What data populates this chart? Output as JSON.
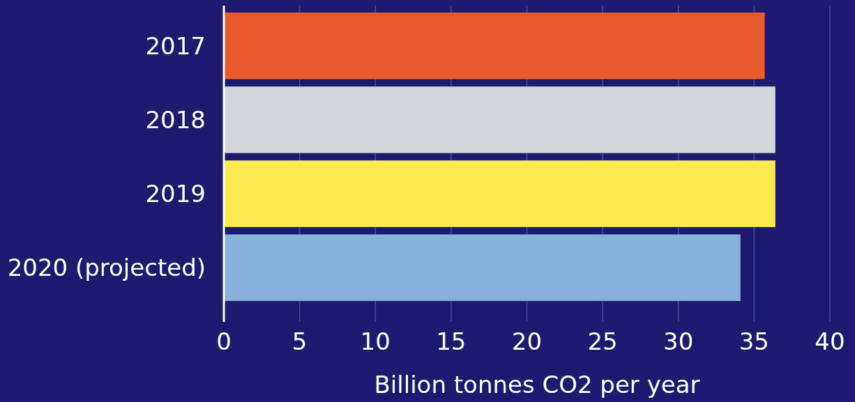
{
  "chart_data": {
    "type": "bar",
    "orientation": "horizontal",
    "categories": [
      "2017",
      "2018",
      "2019",
      "2020 (projected)"
    ],
    "values": [
      35.7,
      36.4,
      36.4,
      34.1
    ],
    "colors": [
      "#e95a2e",
      "#d2d6d9",
      "#fbe952",
      "#87b0dd"
    ],
    "xlim": [
      0,
      40
    ],
    "xticks": [
      0,
      5,
      10,
      15,
      20,
      25,
      30,
      35,
      40
    ],
    "grid": "x",
    "xlabel": "Billion tonnes CO2 per year"
  }
}
